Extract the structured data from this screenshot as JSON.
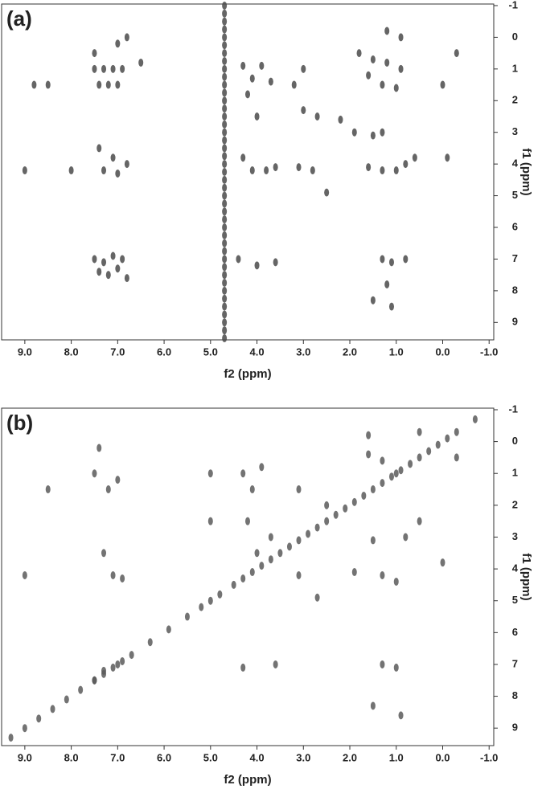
{
  "chart_data": [
    {
      "type": "scatter",
      "panel_label": "(a)",
      "xlabel": "f2 (ppm)",
      "ylabel": "f1 (ppm)",
      "color": "#4a4a4a",
      "xlim": [
        9.5,
        -1.1
      ],
      "ylim": [
        -1.05,
        9.55
      ],
      "xticks": [
        {
          "value": 9,
          "label": "9.0"
        },
        {
          "value": 8,
          "label": "8.0"
        },
        {
          "value": 7,
          "label": "7.0"
        },
        {
          "value": 6,
          "label": "6.0"
        },
        {
          "value": 5,
          "label": "5.0"
        },
        {
          "value": 4,
          "label": "4.0"
        },
        {
          "value": 3,
          "label": "3.0"
        },
        {
          "value": 2,
          "label": "2.0"
        },
        {
          "value": 1,
          "label": "1.0"
        },
        {
          "value": 0,
          "label": "0.0"
        },
        {
          "value": -1,
          "label": "-1.0"
        }
      ],
      "yticks": [
        -1,
        0,
        1,
        2,
        3,
        4,
        5,
        6,
        7,
        8,
        9
      ],
      "x": [
        7.5,
        7.3,
        7.1,
        6.9,
        7.4,
        7.2,
        7.0,
        7.5,
        7.0,
        6.8,
        7.4,
        7.1,
        7.3,
        7.0,
        6.8,
        7.5,
        7.3,
        7.1,
        6.9,
        7.4,
        7.2,
        7.0,
        6.8,
        8.5,
        8.8,
        9.0,
        8.0,
        6.5,
        4.3,
        4.1,
        3.9,
        3.7,
        4.2,
        4.0,
        4.3,
        4.1,
        3.8,
        3.6,
        4.4,
        4.0,
        3.6,
        3.0,
        3.2,
        3.0,
        2.7,
        2.5,
        2.8,
        3.1,
        2.2,
        1.9,
        1.8,
        1.5,
        1.2,
        0.9,
        1.6,
        1.3,
        1.0,
        1.5,
        1.3,
        1.6,
        1.3,
        1.0,
        0.8,
        1.3,
        1.1,
        0.8,
        1.2,
        1.1,
        1.5,
        0.6,
        0.9,
        1.2,
        0,
        -0.1,
        -0.3,
        4.7,
        4.7,
        4.7,
        4.7,
        4.7,
        4.7,
        4.7,
        4.7,
        4.7,
        4.7,
        4.7,
        4.7,
        4.7,
        4.7,
        4.7,
        4.7,
        4.7,
        4.7,
        4.7,
        4.7,
        4.7,
        4.7,
        4.7,
        4.7,
        4.7,
        4.7,
        4.7,
        4.7,
        4.7,
        4.7,
        4.7,
        4.7,
        4.7,
        4.7,
        4.7,
        4.7,
        4.7,
        4.7,
        4.7,
        4.7,
        4.7,
        4.7,
        4.7
      ],
      "y": [
        1,
        1,
        1,
        1,
        1.5,
        1.5,
        1.5,
        0.5,
        0.2,
        0,
        3.5,
        3.8,
        4.2,
        4.3,
        4.0,
        7.0,
        7.1,
        6.9,
        7.0,
        7.4,
        7.5,
        7.3,
        7.6,
        1.5,
        1.5,
        4.2,
        4.2,
        0.8,
        0.9,
        1.3,
        0.9,
        1.4,
        1.8,
        2.5,
        3.8,
        4.2,
        4.2,
        4.1,
        7.0,
        7.2,
        7.1,
        1,
        1.5,
        2.3,
        2.5,
        4.9,
        4.2,
        4.1,
        2.6,
        3.0,
        0.5,
        0.7,
        0.8,
        1,
        1.2,
        1.5,
        1.6,
        3.1,
        3.0,
        4.1,
        4.2,
        4.2,
        4.0,
        7.0,
        7.1,
        7.0,
        7.8,
        8.5,
        8.3,
        3.8,
        0,
        -0.2,
        1.5,
        3.8,
        0.5,
        -1,
        -0.75,
        -0.5,
        -0.25,
        0,
        0.25,
        0.5,
        0.75,
        1,
        1.25,
        1.5,
        1.75,
        2,
        2.25,
        2.5,
        2.75,
        3,
        3.25,
        3.5,
        3.75,
        4,
        4.25,
        4.5,
        4.75,
        5,
        5.25,
        5.5,
        5.75,
        6,
        6.25,
        6.5,
        6.75,
        7,
        7.25,
        7.5,
        7.75,
        8,
        8.25,
        8.5,
        8.75,
        9,
        9.25,
        9.5
      ]
    },
    {
      "type": "scatter",
      "panel_label": "(b)",
      "xlabel": "f2 (ppm)",
      "ylabel": "f1 (ppm)",
      "color": "#5a5a5a",
      "xlim": [
        9.5,
        -1.1
      ],
      "ylim": [
        -1.05,
        9.55
      ],
      "xticks": [
        {
          "value": 9,
          "label": "9.0"
        },
        {
          "value": 8,
          "label": "8.0"
        },
        {
          "value": 7,
          "label": "7.0"
        },
        {
          "value": 6,
          "label": "6.0"
        },
        {
          "value": 5,
          "label": "5.0"
        },
        {
          "value": 4,
          "label": "4.0"
        },
        {
          "value": 3,
          "label": "3.0"
        },
        {
          "value": 2,
          "label": "2.0"
        },
        {
          "value": 1,
          "label": "1.0"
        },
        {
          "value": 0,
          "label": "0.0"
        },
        {
          "value": -1,
          "label": "-1.0"
        }
      ],
      "yticks": [
        -1,
        0,
        1,
        2,
        3,
        4,
        5,
        6,
        7,
        8,
        9
      ],
      "x": [
        9.3,
        9.0,
        8.7,
        8.4,
        8.1,
        7.8,
        7.5,
        7.3,
        7.1,
        6.9,
        6.7,
        6.3,
        5.9,
        5.5,
        5.2,
        5.0,
        4.5,
        4.3,
        4.1,
        3.9,
        3.7,
        3.5,
        3.3,
        3.1,
        2.9,
        2.7,
        2.5,
        2.3,
        2.1,
        1.9,
        1.7,
        1.5,
        1.3,
        1.1,
        0.9,
        0.7,
        0.5,
        0.3,
        0.1,
        -0.1,
        -0.3,
        -0.7,
        7.5,
        7.2,
        7.0,
        7.3,
        7.1,
        6.9,
        7.5,
        7.3,
        7.0,
        7.4,
        8.5,
        9.0,
        5.0,
        5.0,
        4.8,
        4.3,
        4.1,
        3.9,
        4.2,
        4.0,
        3.7,
        4.3,
        3.6,
        3.1,
        3.1,
        2.7,
        2.5,
        1.9,
        1.6,
        1.3,
        1.0,
        1.5,
        1.3,
        1.0,
        0.8,
        1.3,
        1.0,
        1.5,
        0.9,
        0.5,
        0,
        -0.3,
        1.6,
        0.5
      ],
      "y": [
        9.3,
        9.0,
        8.7,
        8.4,
        8.1,
        7.8,
        7.5,
        7.3,
        7.1,
        6.9,
        6.7,
        6.3,
        5.9,
        5.5,
        5.2,
        5.0,
        4.5,
        4.3,
        4.1,
        3.9,
        3.7,
        3.5,
        3.3,
        3.1,
        2.9,
        2.7,
        2.5,
        2.3,
        2.1,
        1.9,
        1.7,
        1.5,
        1.3,
        1.1,
        0.9,
        0.7,
        0.5,
        0.3,
        0.1,
        -0.1,
        -0.3,
        -0.7,
        1.0,
        1.5,
        1.2,
        3.5,
        4.2,
        4.3,
        7.5,
        7.2,
        7.0,
        0.2,
        1.5,
        4.2,
        1.0,
        2.5,
        4.8,
        1.0,
        1.5,
        0.8,
        2.5,
        3.5,
        3.0,
        7.1,
        7.0,
        1.5,
        4.2,
        4.9,
        2.0,
        4.1,
        0.4,
        0.6,
        1.0,
        3.1,
        4.2,
        4.4,
        3.0,
        7.0,
        7.1,
        8.3,
        8.6,
        2.5,
        3.8,
        0.5,
        -0.2,
        -0.3
      ]
    }
  ]
}
